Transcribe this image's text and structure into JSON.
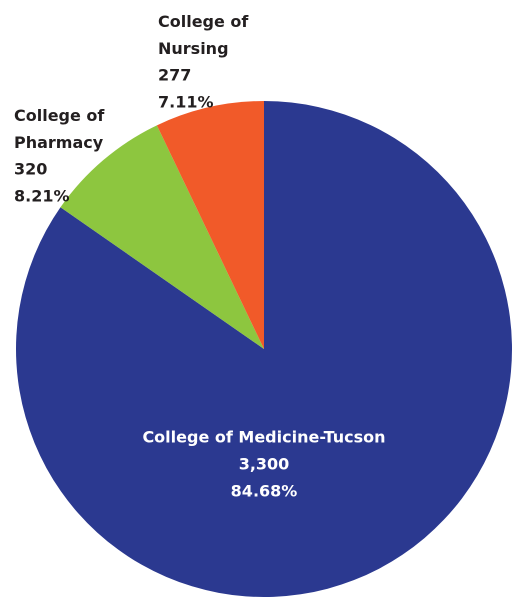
{
  "chart_data": {
    "type": "pie",
    "categories": [
      "College of Medicine-Tucson",
      "College of Pharmacy",
      "College of Nursing"
    ],
    "values": [
      3300,
      320,
      277
    ],
    "value_labels": [
      "3,300",
      "320",
      "277"
    ],
    "percents": [
      84.68,
      8.21,
      7.11
    ],
    "percent_labels": [
      "84.68%",
      "8.21%",
      "7.11%"
    ],
    "colors": [
      "#2b3990",
      "#8dc63f",
      "#f15a29"
    ]
  }
}
